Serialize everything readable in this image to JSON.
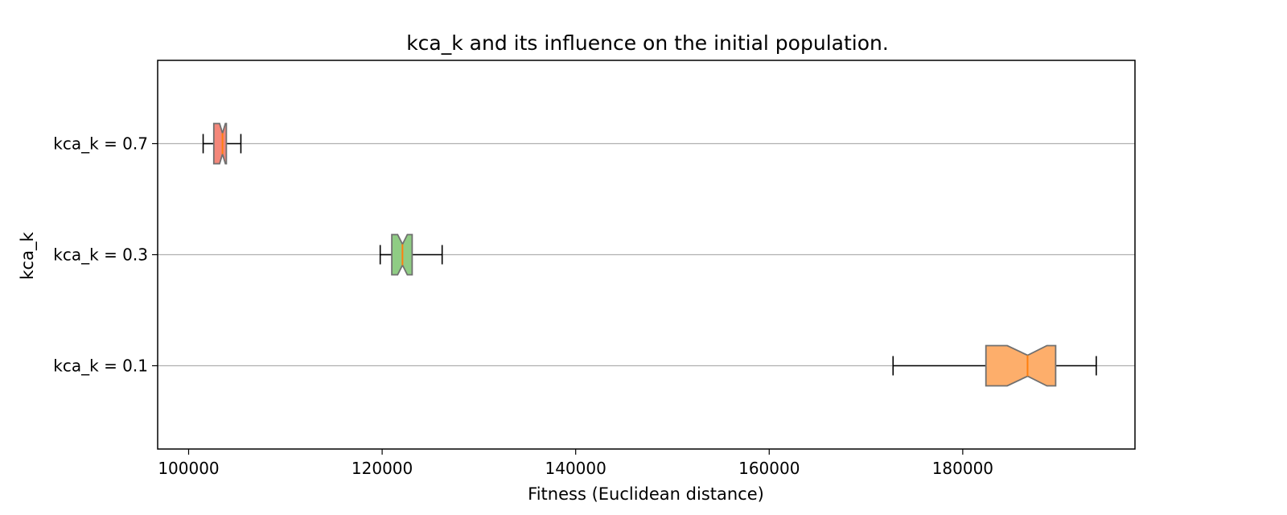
{
  "chart_data": {
    "type": "boxplot",
    "orientation": "horizontal",
    "notched": true,
    "title": "kca_k and its influence on the initial population.",
    "xlabel": "Fitness (Euclidean distance)",
    "ylabel": "kca_k",
    "xlim": [
      96800,
      197800
    ],
    "x_ticks": [
      100000,
      120000,
      140000,
      160000,
      180000
    ],
    "x_tick_labels": [
      "100000",
      "120000",
      "140000",
      "160000",
      "180000"
    ],
    "grid": "horizontal lines at each category",
    "categories": [
      "kca_k = 0.1",
      "kca_k = 0.3",
      "kca_k = 0.7"
    ],
    "boxes": [
      {
        "label": "kca_k = 0.1",
        "whisker_low": 172800,
        "q1": 182400,
        "notch_low": 184600,
        "median": 186700,
        "notch_high": 188700,
        "q3": 189600,
        "whisker_high": 193800,
        "color": "#fdae6b"
      },
      {
        "label": "kca_k = 0.3",
        "whisker_low": 119800,
        "q1": 121000,
        "notch_low": 121600,
        "median": 122100,
        "notch_high": 122600,
        "q3": 123100,
        "whisker_high": 126200,
        "color": "#8fcc84"
      },
      {
        "label": "kca_k = 0.7",
        "whisker_low": 101500,
        "q1": 102600,
        "notch_low": 103200,
        "median": 103500,
        "notch_high": 103800,
        "q3": 103900,
        "whisker_high": 105400,
        "color": "#f4877a"
      }
    ],
    "median_color": "#ff7f0e",
    "box_edge_color": "#707070",
    "whisker_color": "#000000",
    "grid_color": "#b0b0b0"
  }
}
